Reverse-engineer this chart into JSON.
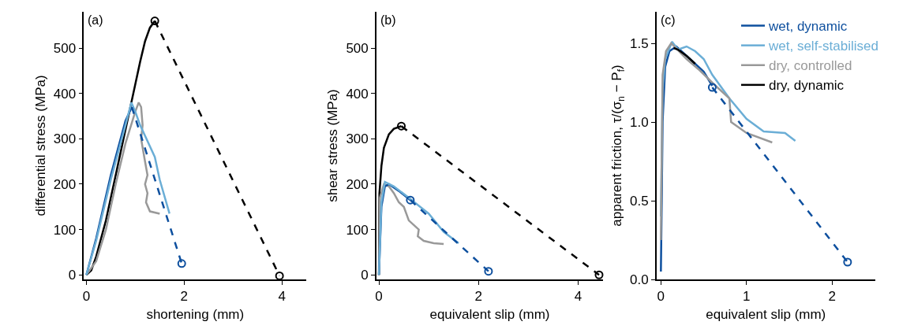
{
  "chart_data": [
    {
      "type": "line",
      "xlabel": "shortening (mm)",
      "ylabel": "differential stress (MPa)",
      "annotations": [
        "(a)"
      ],
      "xlim": [
        -0.05,
        4.5
      ],
      "xticks": [
        0,
        2,
        4
      ],
      "ylim": [
        -10,
        580
      ],
      "yticks": [
        0,
        100,
        200,
        300,
        400,
        500
      ],
      "series": [
        {
          "color": "#000000",
          "line_style": "solid",
          "x": [
            0,
            0.1,
            0.2,
            0.4,
            0.6,
            0.8,
            1.0,
            1.1,
            1.2,
            1.3,
            1.4
          ],
          "values": [
            0,
            10,
            40,
            120,
            220,
            320,
            420,
            470,
            515,
            545,
            560
          ]
        },
        {
          "color": "#999999",
          "line_style": "solid",
          "x": [
            0,
            0.2,
            0.4,
            0.6,
            0.8,
            1.0,
            1.07,
            1.12,
            1.15,
            1.12,
            1.2,
            1.25,
            1.2,
            1.25,
            1.22,
            1.3,
            1.5
          ],
          "values": [
            0,
            30,
            100,
            200,
            290,
            360,
            380,
            370,
            330,
            300,
            250,
            220,
            200,
            180,
            160,
            140,
            135
          ]
        },
        {
          "color": "#0d4f9e",
          "line_style": "solid",
          "x": [
            0,
            0.2,
            0.5,
            0.8,
            0.93
          ],
          "values": [
            0,
            80,
            220,
            340,
            370
          ]
        },
        {
          "color": "#6baed6",
          "line_style": "solid",
          "x": [
            0,
            0.2,
            0.5,
            0.8,
            0.92,
            1.0,
            1.1,
            1.4,
            1.5,
            1.7
          ],
          "values": [
            0,
            75,
            210,
            330,
            380,
            360,
            330,
            260,
            210,
            135
          ]
        },
        {
          "color": "#0d4f9e",
          "line_style": "dashed",
          "x": [
            0.93,
            1.95
          ],
          "values": [
            370,
            25
          ]
        },
        {
          "color": "#000000",
          "line_style": "dashed",
          "x": [
            1.4,
            3.95
          ],
          "values": [
            560,
            -2
          ]
        },
        {
          "type": "scatter",
          "marker": "circle",
          "color": "#0d4f9e",
          "x": [
            1.95
          ],
          "values": [
            25
          ]
        },
        {
          "type": "scatter",
          "marker": "circle",
          "color": "#000000",
          "x": [
            1.4,
            3.95
          ],
          "values": [
            560,
            -2
          ]
        }
      ]
    },
    {
      "type": "line",
      "xlabel": "equivalent slip (mm)",
      "ylabel": "shear stress (MPa)",
      "annotations": [
        "(b)"
      ],
      "xlim": [
        -0.05,
        4.5
      ],
      "xticks": [
        0,
        2,
        4
      ],
      "ylim": [
        -10,
        580
      ],
      "yticks": [
        0,
        100,
        200,
        300,
        400,
        500
      ],
      "series": [
        {
          "color": "#000000",
          "line_style": "solid",
          "x": [
            0,
            0.01,
            0.05,
            0.1,
            0.2,
            0.3,
            0.45
          ],
          "values": [
            0,
            180,
            240,
            280,
            310,
            322,
            328
          ]
        },
        {
          "color": "#999999",
          "line_style": "solid",
          "x": [
            0,
            0.02,
            0.1,
            0.2,
            0.3,
            0.4,
            0.5,
            0.6,
            0.7,
            0.8,
            0.78,
            0.9,
            1.1,
            1.3
          ],
          "values": [
            0,
            170,
            200,
            195,
            180,
            160,
            150,
            120,
            110,
            100,
            85,
            75,
            70,
            68
          ]
        },
        {
          "color": "#0d4f9e",
          "line_style": "solid",
          "x": [
            0,
            0.05,
            0.12,
            0.2,
            0.4,
            0.63
          ],
          "values": [
            0,
            150,
            195,
            200,
            185,
            165
          ]
        },
        {
          "color": "#6baed6",
          "line_style": "solid",
          "x": [
            0,
            0.05,
            0.12,
            0.3,
            0.6,
            1.0,
            1.3,
            1.6
          ],
          "values": [
            0,
            160,
            205,
            195,
            170,
            135,
            95,
            70
          ]
        },
        {
          "color": "#0d4f9e",
          "line_style": "dashed",
          "x": [
            0.63,
            2.2
          ],
          "values": [
            165,
            8
          ]
        },
        {
          "color": "#000000",
          "line_style": "dashed",
          "x": [
            0.45,
            4.42
          ],
          "values": [
            328,
            0
          ]
        },
        {
          "type": "scatter",
          "marker": "circle",
          "color": "#0d4f9e",
          "x": [
            0.63,
            2.2
          ],
          "values": [
            165,
            8
          ]
        },
        {
          "type": "scatter",
          "marker": "circle",
          "color": "#000000",
          "x": [
            0.45,
            4.42
          ],
          "values": [
            328,
            0
          ]
        }
      ]
    },
    {
      "type": "line",
      "xlabel": "equivalent slip (mm)",
      "ylabel": "apparent friction, τ/(σ$_{n}$ − P$_{f}$)",
      "annotations": [
        "(c)"
      ],
      "xlim": [
        -0.05,
        2.5
      ],
      "xticks": [
        0,
        1,
        2
      ],
      "ylim": [
        0,
        1.7
      ],
      "yticks": [
        {
          "value": 0,
          "label": "0.0"
        },
        0.5,
        {
          "value": 1,
          "label": "1.0"
        },
        1.5
      ],
      "legend": "top right",
      "series": [
        {
          "name": "wet, dynamic",
          "color": "#0d4f9e",
          "line_style": "solid",
          "x": [
            0,
            0.01,
            0.02,
            0.05,
            0.1,
            0.18,
            0.3,
            0.4,
            0.5,
            0.6
          ],
          "values": [
            0.05,
            0.5,
            1.0,
            1.35,
            1.45,
            1.48,
            1.42,
            1.37,
            1.32,
            1.23
          ]
        },
        {
          "name": "wet, self-stabilised",
          "color": "#6baed6",
          "line_style": "solid",
          "x": [
            0,
            0.01,
            0.02,
            0.05,
            0.13,
            0.2,
            0.3,
            0.4,
            0.5,
            0.6,
            0.8,
            1.0,
            1.2,
            1.45,
            1.57
          ],
          "values": [
            0.4,
            0.8,
            1.2,
            1.4,
            1.51,
            1.46,
            1.48,
            1.45,
            1.4,
            1.3,
            1.15,
            1.02,
            0.94,
            0.93,
            0.88
          ]
        },
        {
          "name": "dry, controlled",
          "color": "#999999",
          "line_style": "solid",
          "x": [
            0,
            0.01,
            0.02,
            0.06,
            0.12,
            0.3,
            0.45,
            0.6,
            0.8,
            0.82,
            1.0,
            1.3
          ],
          "values": [
            0.25,
            0.8,
            1.3,
            1.45,
            1.5,
            1.4,
            1.33,
            1.25,
            1.15,
            1.0,
            0.93,
            0.87
          ]
        },
        {
          "name": "dry, dynamic",
          "color": "#000000",
          "line_style": "solid",
          "x": [
            0.15,
            0.2,
            0.3,
            0.4
          ],
          "values": [
            1.47,
            1.46,
            1.42,
            1.37
          ]
        },
        {
          "color": "#0d4f9e",
          "line_style": "dashed",
          "x": [
            0.6,
            2.18
          ],
          "values": [
            1.22,
            0.11
          ]
        },
        {
          "type": "scatter",
          "marker": "circle",
          "color": "#0d4f9e",
          "x": [
            0.6,
            2.18
          ],
          "values": [
            1.22,
            0.11
          ]
        }
      ]
    }
  ]
}
